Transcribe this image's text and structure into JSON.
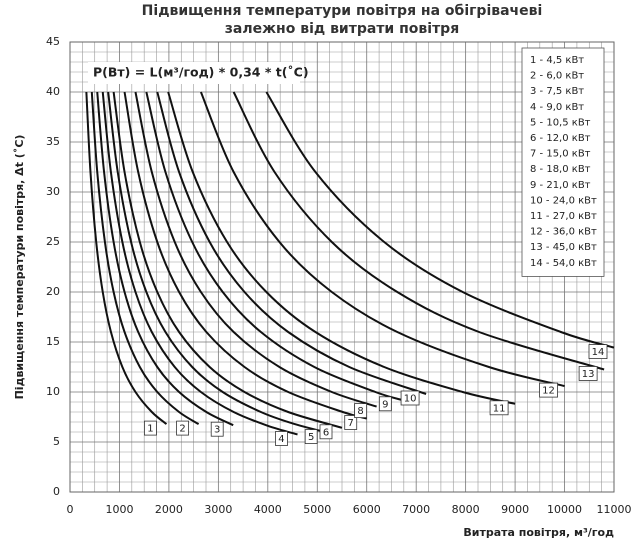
{
  "chart_data": {
    "type": "line",
    "title": [
      "Підвищення температури повітря на обігрівачеві",
      "залежно від витрати повітря"
    ],
    "annotation": "P(Вт) = L(м³/год) * 0,34 * t(˚C)",
    "x_label": "Витрата повітря, м³/год",
    "y_label": "Підвищення температури повітря, Δt (˚C)",
    "xlim": [
      0,
      11000
    ],
    "ylim": [
      0,
      45
    ],
    "xticks": [
      0,
      1000,
      2000,
      3000,
      4000,
      5000,
      6000,
      7000,
      8000,
      9000,
      10000,
      11000
    ],
    "yticks": [
      0,
      5,
      10,
      15,
      20,
      25,
      30,
      35,
      40,
      45
    ],
    "grid": true,
    "legend": "upper right",
    "color": "#111111",
    "series": [
      {
        "name": "1 - 4,5 кВт",
        "tag": "1",
        "x": [
          331,
          414,
          530,
          662,
          828,
          1059,
          1324,
          1655,
          1950
        ],
        "values": [
          40,
          32,
          25,
          20,
          16,
          12.5,
          10,
          8,
          6.79
        ]
      },
      {
        "name": "2 - 6,0 кВт",
        "tag": "2",
        "x": [
          441,
          551,
          706,
          882,
          1103,
          1412,
          1765,
          2206,
          2600
        ],
        "values": [
          40,
          32,
          25,
          20,
          16,
          12.5,
          10,
          8,
          6.79
        ]
      },
      {
        "name": "3 - 7,5 кВт",
        "tag": "3",
        "x": [
          551,
          689,
          882,
          1103,
          1379,
          1765,
          2206,
          2757,
          3300
        ],
        "values": [
          40,
          32,
          25,
          20,
          16,
          12.5,
          10,
          8,
          6.68
        ]
      },
      {
        "name": "4 - 9,0 кВт",
        "tag": "4",
        "x": [
          662,
          827,
          1059,
          1324,
          1654,
          2118,
          2647,
          3309,
          4000,
          4600
        ],
        "values": [
          40,
          32,
          25,
          20,
          16,
          12.5,
          10,
          8,
          6.62,
          5.75
        ]
      },
      {
        "name": "5 - 10,5 кВт",
        "tag": "5",
        "x": [
          772,
          965,
          1235,
          1544,
          1930,
          2471,
          3088,
          3860,
          4500,
          5200
        ],
        "values": [
          40,
          32,
          25,
          20,
          16,
          12.5,
          10,
          8,
          6.86,
          5.94
        ]
      },
      {
        "name": "6 - 12,0 кВт",
        "tag": "6",
        "x": [
          882,
          1103,
          1412,
          1765,
          2206,
          2824,
          3529,
          4412,
          5500
        ],
        "values": [
          40,
          32,
          25,
          20,
          16,
          12.5,
          10,
          8,
          6.42
        ]
      },
      {
        "name": "7 - 15,0 кВт",
        "tag": "7",
        "x": [
          1103,
          1379,
          1765,
          2206,
          2757,
          3529,
          4412,
          5515,
          6000
        ],
        "values": [
          40,
          32,
          25,
          20,
          16,
          12.5,
          10,
          8,
          7.35
        ]
      },
      {
        "name": "8 - 18,0 кВт",
        "tag": "8",
        "x": [
          1324,
          1654,
          2118,
          2647,
          3309,
          4235,
          5294,
          6200
        ],
        "values": [
          40,
          32,
          25,
          20,
          16,
          12.5,
          10,
          8.54
        ]
      },
      {
        "name": "9 - 21,0 кВт",
        "tag": "9",
        "x": [
          1544,
          1930,
          2471,
          3088,
          3860,
          4941,
          6176,
          6700
        ],
        "values": [
          40,
          32,
          25,
          20,
          16,
          12.5,
          10,
          9.22
        ]
      },
      {
        "name": "10 - 24,0 кВт",
        "tag": "10",
        "x": [
          1765,
          2206,
          2824,
          3529,
          4412,
          5647,
          7200
        ],
        "values": [
          40,
          32,
          25,
          20,
          16,
          12.5,
          9.8
        ]
      },
      {
        "name": "11 - 27,0 кВт",
        "tag": "11",
        "x": [
          1985,
          2482,
          3176,
          3971,
          4963,
          6353,
          7941,
          9000
        ],
        "values": [
          40,
          32,
          25,
          20,
          16,
          12.5,
          10,
          8.82
        ]
      },
      {
        "name": "12 - 36,0 кВт",
        "tag": "12",
        "x": [
          2647,
          3309,
          4235,
          5294,
          6618,
          8471,
          10000
        ],
        "values": [
          40,
          32,
          25,
          20,
          16,
          12.5,
          10.59
        ]
      },
      {
        "name": "13 - 45,0 кВт",
        "tag": "13",
        "x": [
          3309,
          4136,
          5294,
          6618,
          8272,
          10800
        ],
        "values": [
          40,
          32,
          25,
          20,
          16,
          12.25
        ]
      },
      {
        "name": "14 - 54,0 кВт",
        "tag": "14",
        "x": [
          3971,
          4963,
          6353,
          7941,
          9926,
          11000
        ],
        "values": [
          40,
          32,
          25,
          20,
          16,
          14.44
        ]
      }
    ]
  }
}
